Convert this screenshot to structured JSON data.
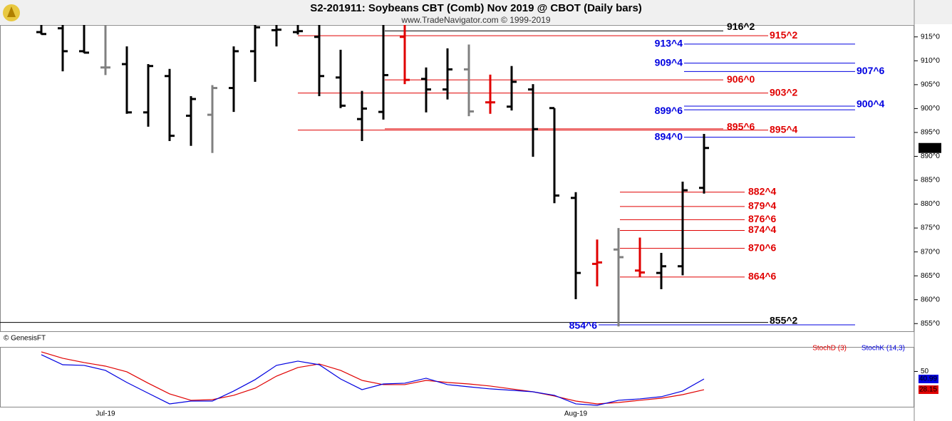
{
  "title": "S2-201911:  Soybeans CBT (Comb) Nov 2019 @ CBOT  (Daily bars)",
  "watermark": "www.TradeNavigator.com © 1999-2019",
  "source": "© GenesisFT",
  "chart_data": [
    {
      "type": "ohlc",
      "categories": [
        null,
        null,
        null,
        "Jul-19",
        null,
        null,
        null,
        null,
        null,
        null,
        null,
        null,
        null,
        null,
        null,
        null,
        null,
        null,
        null,
        null,
        null,
        null,
        null,
        null,
        null,
        "Aug-19",
        null,
        null,
        null,
        null,
        null,
        null
      ],
      "open": [
        916,
        916.8,
        912,
        908.6,
        909.3,
        899.2,
        906.8,
        898.5,
        898.7,
        904.3,
        912,
        916.4,
        916,
        915,
        906.5,
        897.8,
        899.3,
        915,
        906.2,
        904,
        908.2,
        901.3,
        900.4,
        904,
        900.1,
        881.3,
        867.5,
        870.5,
        866.1,
        865.6,
        867,
        883.4
      ],
      "high": [
        918,
        918,
        918,
        918,
        913,
        909.3,
        908.3,
        902.6,
        904.9,
        913,
        918,
        918,
        918,
        918,
        912.3,
        903.7,
        918,
        918,
        908.6,
        912.6,
        913.4,
        907.1,
        908.9,
        905.1,
        900.1,
        882.5,
        872.6,
        875,
        873,
        869.8,
        884.7,
        894.7
      ],
      "low": [
        915.5,
        907.8,
        911.6,
        907,
        898.9,
        896.2,
        893.2,
        892.2,
        890.7,
        899.3,
        905.6,
        913,
        915.5,
        902.6,
        900.1,
        893.2,
        897.7,
        905.1,
        899.2,
        901.9,
        898.4,
        898.9,
        899.6,
        889.9,
        880.2,
        860.1,
        862.8,
        854.4,
        864.8,
        862.2,
        865.1,
        882.2
      ],
      "close": [
        915.6,
        912,
        911.7,
        908.6,
        899.2,
        908.9,
        894.3,
        902,
        904.3,
        912,
        917,
        916.5,
        916.2,
        906.8,
        900.6,
        900,
        907,
        906,
        904,
        908.2,
        899.4,
        901.3,
        905.6,
        895.7,
        881.8,
        865.6,
        867.8,
        868.9,
        865.7,
        867,
        882.9,
        891.75
      ],
      "bar_colors": [
        "#000000",
        "#000000",
        "#000000",
        "#808080",
        "#000000",
        "#000000",
        "#000000",
        "#000000",
        "#808080",
        "#000000",
        "#000000",
        "#000000",
        "#000000",
        "#000000",
        "#000000",
        "#000000",
        "#000000",
        "#e00000",
        "#000000",
        "#000000",
        "#808080",
        "#e00000",
        "#000000",
        "#000000",
        "#000000",
        "#000000",
        "#e00000",
        "#808080",
        "#e00000",
        "#000000",
        "#000000",
        "#000000"
      ],
      "last_label": "891^6",
      "ylim": [
        853.4,
        917.5
      ],
      "yticks": [
        {
          "value": 855,
          "label": "855^0"
        },
        {
          "value": 860,
          "label": "860^0"
        },
        {
          "value": 865,
          "label": "865^0"
        },
        {
          "value": 870,
          "label": "870^0"
        },
        {
          "value": 875,
          "label": "875^0"
        },
        {
          "value": 880,
          "label": "880^0"
        },
        {
          "value": 885,
          "label": "885^0"
        },
        {
          "value": 890,
          "label": "890^0"
        },
        {
          "value": 895,
          "label": "895^0"
        },
        {
          "value": 900,
          "label": "900^0"
        },
        {
          "value": 905,
          "label": "905^0"
        },
        {
          "value": 910,
          "label": "910^0"
        },
        {
          "value": 915,
          "label": "915^0"
        }
      ],
      "levels": [
        {
          "label": "916^2",
          "value": 916.25,
          "color": "#000000"
        },
        {
          "label": "915^2",
          "value": 915.25,
          "color": "#e00000"
        },
        {
          "label": "913^4",
          "value": 913.5,
          "color": "#0000e0"
        },
        {
          "label": "909^4",
          "value": 909.5,
          "color": "#0000e0"
        },
        {
          "label": "907^6",
          "value": 907.75,
          "color": "#0000e0"
        },
        {
          "label": "906^0",
          "value": 906,
          "color": "#e00000"
        },
        {
          "label": "903^2",
          "value": 903.25,
          "color": "#e00000"
        },
        {
          "label": "900^4",
          "value": 900.5,
          "color": "#0000e0"
        },
        {
          "label": "899^6",
          "value": 899.75,
          "color": "#0000e0"
        },
        {
          "label": "895^6",
          "value": 895.75,
          "color": "#e00000"
        },
        {
          "label": "895^4",
          "value": 895.5,
          "color": "#e00000"
        },
        {
          "label": "894^0",
          "value": 894,
          "color": "#0000e0"
        },
        {
          "label": "882^4",
          "value": 882.5,
          "color": "#e00000"
        },
        {
          "label": "879^4",
          "value": 879.5,
          "color": "#e00000"
        },
        {
          "label": "876^6",
          "value": 876.75,
          "color": "#e00000"
        },
        {
          "label": "874^4",
          "value": 874.5,
          "color": "#e00000"
        },
        {
          "label": "870^6",
          "value": 870.75,
          "color": "#e00000"
        },
        {
          "label": "864^6",
          "value": 864.75,
          "color": "#e00000"
        },
        {
          "label": "855^2",
          "value": 855.25,
          "color": "#000000"
        },
        {
          "label": "854^6",
          "value": 854.75,
          "color": "#0000e0"
        }
      ]
    },
    {
      "type": "line",
      "series": [
        {
          "name": "StochD (3)",
          "color": "#e00000",
          "values": [
            73.5,
            65.8,
            60.7,
            56.4,
            49.6,
            35.9,
            23.1,
            15.4,
            16.2,
            21.4,
            29.9,
            44.4,
            54.7,
            59,
            51.3,
            39.3,
            34.2,
            34.2,
            39.3,
            36.8,
            35,
            32.5,
            29.1,
            25.6,
            20.5,
            14.5,
            11.1,
            12.8,
            15.4,
            17.9,
            22.2,
            28.15
          ]
        },
        {
          "name": "StochK (14,3)",
          "color": "#0000e0",
          "values": [
            70.1,
            58.1,
            57.3,
            51.3,
            36.8,
            23.9,
            11.1,
            14.5,
            14.5,
            26.5,
            40.2,
            57.3,
            62.4,
            58.1,
            41,
            28.2,
            35,
            35.9,
            41.9,
            34.2,
            31.6,
            29.1,
            27.4,
            25.6,
            21.4,
            11.1,
            9.4,
            15.4,
            17.1,
            19.7,
            26.5,
            40.99
          ]
        }
      ],
      "ylim": [
        6.8,
        78.6
      ],
      "yticks": [
        50
      ]
    }
  ]
}
